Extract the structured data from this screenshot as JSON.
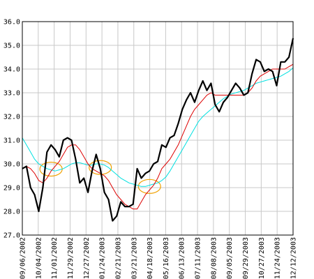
{
  "chart_data": {
    "type": "line",
    "title": "",
    "xlabel": "",
    "ylabel": "",
    "ylim": [
      27.0,
      36.0
    ],
    "y_ticks": [
      "27.0",
      "28.0",
      "29.0",
      "30.0",
      "31.0",
      "32.0",
      "33.0",
      "34.0",
      "35.0",
      "36.0"
    ],
    "x_ticks": [
      "09/06/2002",
      "10/04/2002",
      "11/01/2002",
      "11/29/2002",
      "12/27/2002",
      "01/24/2003",
      "02/21/2003",
      "03/21/2003",
      "04/18/2003",
      "05/16/2003",
      "06/13/2003",
      "07/11/2003",
      "08/08/2003",
      "09/05/2003",
      "09/29/2003",
      "10/27/2003",
      "11/24/2003",
      "12/12/2003"
    ],
    "x_count": 67,
    "grid": true,
    "legend": "none",
    "colors": {
      "grid": "#c8c8c8",
      "price": "#000000",
      "ma_short": "#dd0000",
      "ma_long": "#00e0e0",
      "highlight": "#f0a000"
    },
    "series": [
      {
        "key": "price",
        "values": [
          29.8,
          29.9,
          29.0,
          28.7,
          28.0,
          29.0,
          30.5,
          30.8,
          30.6,
          30.3,
          31.0,
          31.1,
          31.0,
          30.2,
          29.2,
          29.4,
          28.8,
          29.7,
          30.4,
          29.8,
          28.8,
          28.5,
          27.6,
          27.8,
          28.4,
          28.2,
          28.2,
          28.3,
          29.8,
          29.4,
          29.6,
          29.7,
          30.0,
          30.1,
          30.8,
          30.7,
          31.1,
          31.2,
          31.7,
          32.3,
          32.7,
          33.0,
          32.6,
          33.1,
          33.5,
          33.1,
          33.4,
          32.5,
          32.2,
          32.6,
          32.8,
          33.1,
          33.4,
          33.2,
          32.9,
          33.0,
          33.8,
          34.4,
          34.3,
          33.9,
          34.0,
          33.9,
          33.3,
          34.3,
          34.3,
          34.5,
          35.3
        ]
      },
      {
        "key": "ma_short",
        "values": [
          29.8,
          29.9,
          29.8,
          29.6,
          29.3,
          29.2,
          29.4,
          29.7,
          29.9,
          30.1,
          30.4,
          30.7,
          30.8,
          30.8,
          30.6,
          30.3,
          30.0,
          29.8,
          29.7,
          29.6,
          29.5,
          29.3,
          29.0,
          28.7,
          28.5,
          28.3,
          28.2,
          28.1,
          28.1,
          28.4,
          28.7,
          28.9,
          29.1,
          29.4,
          29.8,
          30.0,
          30.2,
          30.5,
          30.8,
          31.2,
          31.6,
          32.0,
          32.3,
          32.5,
          32.7,
          32.9,
          33.0,
          32.9,
          32.9,
          32.9,
          32.9,
          32.9,
          32.9,
          32.9,
          32.9,
          33.0,
          33.2,
          33.5,
          33.7,
          33.8,
          33.9,
          34.0,
          34.0,
          34.0,
          34.0,
          34.1,
          34.2
        ]
      },
      {
        "key": "ma_long",
        "values": [
          31.1,
          30.8,
          30.5,
          30.2,
          30.0,
          29.9,
          29.8,
          29.75,
          29.7,
          29.75,
          29.8,
          29.9,
          30.0,
          30.05,
          30.05,
          30.0,
          29.95,
          29.95,
          30.0,
          30.0,
          29.95,
          29.85,
          29.7,
          29.55,
          29.4,
          29.3,
          29.2,
          29.15,
          29.1,
          29.05,
          29.05,
          29.1,
          29.15,
          29.2,
          29.3,
          29.45,
          29.7,
          30.0,
          30.3,
          30.6,
          30.9,
          31.2,
          31.5,
          31.8,
          32.0,
          32.15,
          32.3,
          32.45,
          32.6,
          32.75,
          32.85,
          32.95,
          33.0,
          33.05,
          33.1,
          33.2,
          33.3,
          33.4,
          33.45,
          33.5,
          33.55,
          33.6,
          33.65,
          33.7,
          33.8,
          33.9,
          34.05
        ]
      }
    ],
    "annotations": [
      {
        "shape": "ellipse",
        "x_index": 7,
        "y": 29.78
      },
      {
        "shape": "ellipse",
        "x_index": 19,
        "y": 29.85
      },
      {
        "shape": "ellipse",
        "x_index": 31,
        "y": 29.05
      }
    ]
  }
}
